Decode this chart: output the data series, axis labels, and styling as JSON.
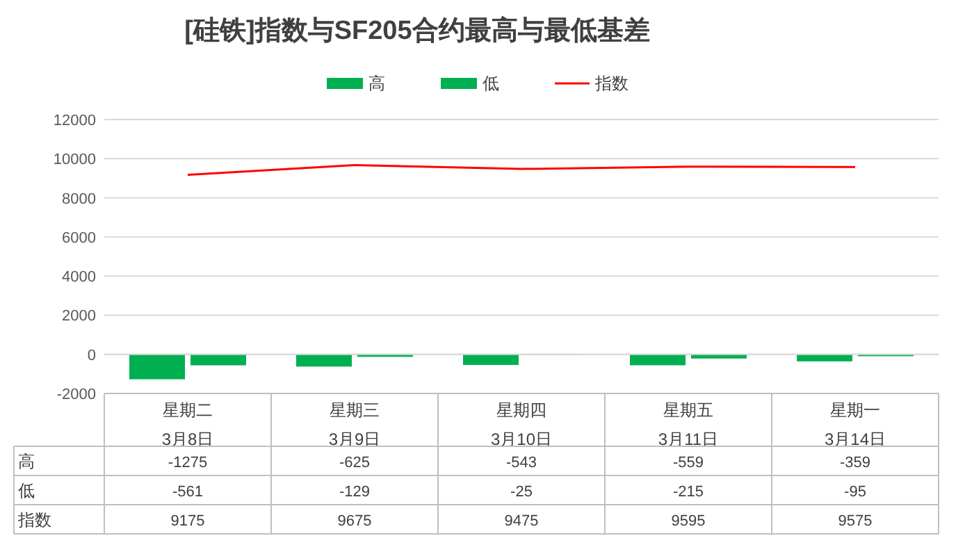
{
  "chart_data": {
    "type": "bar",
    "title": "[硅铁]指数与SF205合约最高与最低基差",
    "categories": [
      "星期二\n3月8日",
      "星期三\n3月9日",
      "星期四\n3月10日",
      "星期五\n3月11日",
      "星期一\n3月14日"
    ],
    "series": [
      {
        "name": "高",
        "color": "#00b050",
        "values": [
          -1275,
          -625,
          -543,
          -559,
          -359
        ]
      },
      {
        "name": "低",
        "color": "#00b050",
        "values": [
          -561,
          -129,
          -25,
          -215,
          -95
        ]
      },
      {
        "name": "指数",
        "type": "line",
        "color": "#ff0000",
        "values": [
          9175,
          9675,
          9475,
          9595,
          9575
        ]
      }
    ],
    "ylim": [
      -2000,
      12000
    ],
    "yticks": [
      -2000,
      0,
      2000,
      4000,
      6000,
      8000,
      10000,
      12000
    ],
    "grid": "y",
    "legend": "top",
    "data_labels": true
  }
}
